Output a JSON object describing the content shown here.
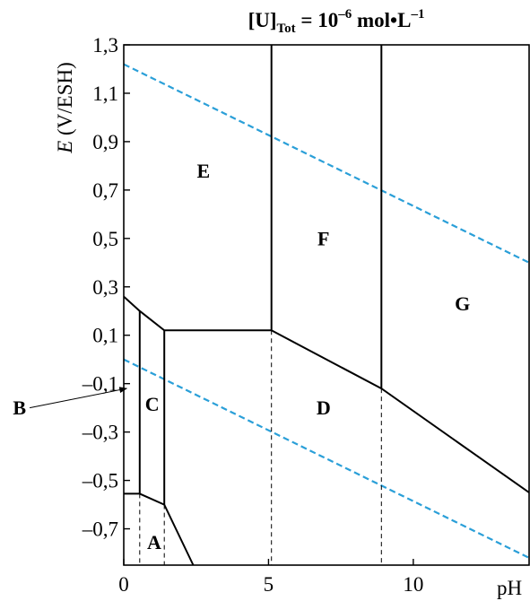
{
  "chart_data": {
    "type": "line",
    "title": {
      "prefix": "[U]",
      "subscript": "Tot",
      "middle": " = 10",
      "superscript": "–6",
      "suffix": " mol•L",
      "suffix_superscript": "–1"
    },
    "xlabel": "pH",
    "ylabel": {
      "italic": "E",
      "rest": " (V/ESH)"
    },
    "xlim": [
      0,
      14
    ],
    "ylim": [
      -0.85,
      1.3
    ],
    "x_ticks": [
      {
        "value": 0,
        "label": "0"
      },
      {
        "value": 5,
        "label": "5"
      },
      {
        "value": 10,
        "label": "10"
      }
    ],
    "y_ticks": [
      {
        "value": 1.3,
        "label": "1,3"
      },
      {
        "value": 1.1,
        "label": "1,1"
      },
      {
        "value": 0.9,
        "label": "0,9"
      },
      {
        "value": 0.7,
        "label": "0,7"
      },
      {
        "value": 0.5,
        "label": "0,5"
      },
      {
        "value": 0.3,
        "label": "0,3"
      },
      {
        "value": 0.1,
        "label": "0,1"
      },
      {
        "value": -0.1,
        "label": "–0,1"
      },
      {
        "value": -0.3,
        "label": "–0,3"
      },
      {
        "value": -0.5,
        "label": "–0,5"
      },
      {
        "value": -0.7,
        "label": "–0,7"
      }
    ],
    "boundaries": [
      {
        "name": "upper-left-boundary",
        "points": [
          [
            0,
            0.26
          ],
          [
            0.55,
            0.2
          ],
          [
            1.4,
            0.12
          ],
          [
            5.1,
            0.12
          ],
          [
            8.9,
            -0.12
          ],
          [
            14,
            -0.55
          ]
        ]
      },
      {
        "name": "lower-left-boundary",
        "points": [
          [
            0,
            -0.555
          ],
          [
            0.55,
            -0.555
          ],
          [
            1.4,
            -0.6
          ],
          [
            2.4,
            -0.85
          ]
        ]
      },
      {
        "name": "vertical-boundary-1",
        "points": [
          [
            0.55,
            0.2
          ],
          [
            0.55,
            -0.555
          ]
        ]
      },
      {
        "name": "vertical-boundary-2",
        "points": [
          [
            1.4,
            0.12
          ],
          [
            1.4,
            -0.6
          ]
        ]
      },
      {
        "name": "vertical-boundary-3",
        "points": [
          [
            5.1,
            0.12
          ],
          [
            5.1,
            1.3
          ]
        ]
      },
      {
        "name": "vertical-boundary-4",
        "points": [
          [
            8.9,
            -0.12
          ],
          [
            8.9,
            1.3
          ]
        ]
      }
    ],
    "dashed_drops": [
      {
        "name": "drop-1",
        "points": [
          [
            0.55,
            -0.555
          ],
          [
            0.55,
            -0.85
          ]
        ]
      },
      {
        "name": "drop-2",
        "points": [
          [
            1.4,
            -0.6
          ],
          [
            1.4,
            -0.85
          ]
        ]
      },
      {
        "name": "drop-3",
        "points": [
          [
            5.1,
            0.12
          ],
          [
            5.1,
            -0.85
          ]
        ]
      },
      {
        "name": "drop-4",
        "points": [
          [
            8.9,
            -0.12
          ],
          [
            8.9,
            -0.85
          ]
        ]
      }
    ],
    "water_lines": [
      {
        "name": "oxygen-water-line",
        "points": [
          [
            0,
            1.22
          ],
          [
            14,
            0.4
          ]
        ]
      },
      {
        "name": "hydrogen-water-line",
        "points": [
          [
            0,
            0.0
          ],
          [
            14,
            -0.82
          ]
        ]
      }
    ],
    "regions": [
      {
        "label": "A",
        "x": 1.05,
        "y": -0.755
      },
      {
        "label": "B",
        "x": -3.6,
        "y": -0.2
      },
      {
        "label": "C",
        "x": 0.98,
        "y": -0.185
      },
      {
        "label": "D",
        "x": 6.9,
        "y": -0.2
      },
      {
        "label": "E",
        "x": 2.75,
        "y": 0.78
      },
      {
        "label": "F",
        "x": 6.9,
        "y": 0.5
      },
      {
        "label": "G",
        "x": 11.7,
        "y": 0.23
      }
    ],
    "pointer": {
      "from": [
        -3.25,
        -0.2
      ],
      "to": [
        0.1,
        -0.12
      ]
    },
    "colors": {
      "boundary": "#000000",
      "water_line": "#2a9fd8"
    }
  }
}
